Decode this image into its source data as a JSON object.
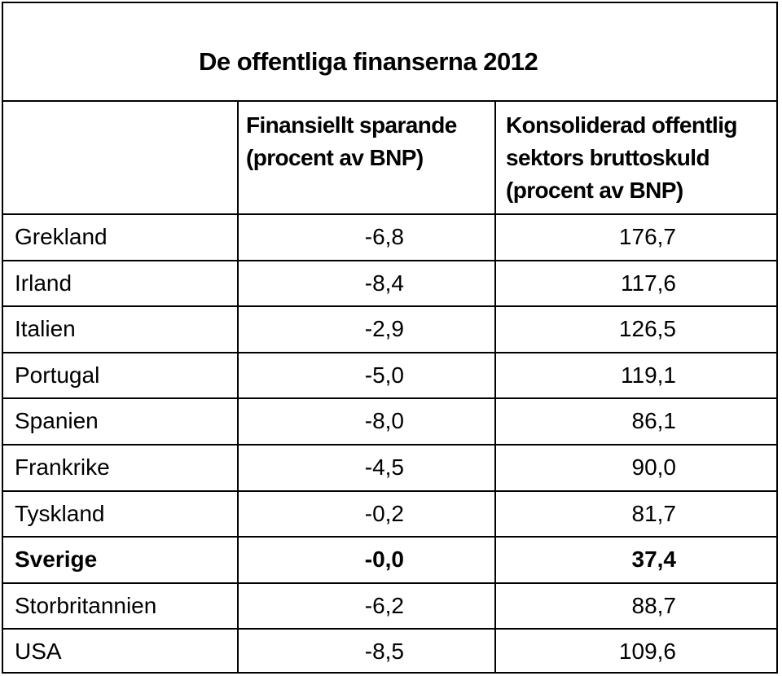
{
  "title": "De offentliga finanserna 2012",
  "columns": {
    "col1": [
      "Finansiellt sparande",
      "(procent av BNP)"
    ],
    "col2": [
      "Konsoliderad offentlig",
      "sektors bruttoskuld",
      "(procent av BNP)"
    ]
  },
  "rows": [
    {
      "country": "Grekland",
      "saving": "-6,8",
      "debt": "176,7",
      "bold": false
    },
    {
      "country": "Irland",
      "saving": "-8,4",
      "debt": "117,6",
      "bold": false
    },
    {
      "country": "Italien",
      "saving": "-2,9",
      "debt": "126,5",
      "bold": false
    },
    {
      "country": "Portugal",
      "saving": "-5,0",
      "debt": "119,1",
      "bold": false
    },
    {
      "country": "Spanien",
      "saving": "-8,0",
      "debt": "86,1",
      "bold": false
    },
    {
      "country": "Frankrike",
      "saving": "-4,5",
      "debt": "90,0",
      "bold": false
    },
    {
      "country": "Tyskland",
      "saving": "-0,2",
      "debt": "81,7",
      "bold": false
    },
    {
      "country": "Sverige",
      "saving": "-0,0",
      "debt": "37,4",
      "bold": true
    },
    {
      "country": "Storbritannien",
      "saving": "-6,2",
      "debt": "88,7",
      "bold": false
    },
    {
      "country": "USA",
      "saving": "-8,5",
      "debt": "109,6",
      "bold": false
    }
  ]
}
